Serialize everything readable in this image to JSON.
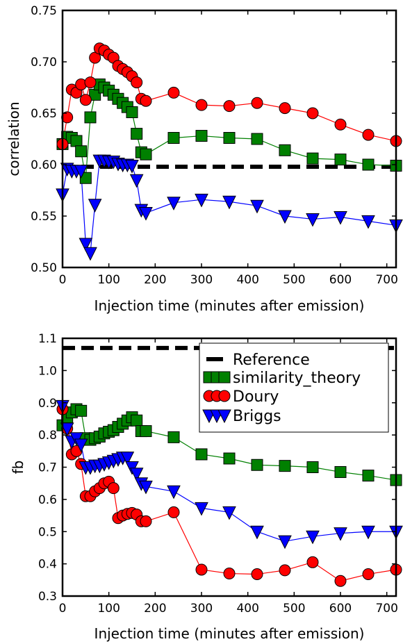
{
  "chart_data": [
    {
      "type": "line",
      "xlabel": "Injection time (minutes after emission)",
      "ylabel": "correlation",
      "xlim": [
        0,
        720
      ],
      "ylim": [
        0.5,
        0.75
      ],
      "xticks": [
        "0",
        "100",
        "200",
        "300",
        "400",
        "500",
        "600",
        "700"
      ],
      "yticks": [
        "0.50",
        "0.55",
        "0.60",
        "0.65",
        "0.70",
        "0.75"
      ],
      "reference": 0.598,
      "series": [
        {
          "name": "similarity_theory",
          "color": "#008000",
          "marker": "square",
          "x": [
            0,
            10,
            20,
            30,
            40,
            50,
            60,
            70,
            80,
            90,
            100,
            110,
            120,
            130,
            140,
            150,
            160,
            170,
            180,
            240,
            300,
            360,
            420,
            480,
            540,
            600,
            660,
            720
          ],
          "y": [
            0.62,
            0.627,
            0.626,
            0.623,
            0.613,
            0.587,
            0.646,
            0.668,
            0.678,
            0.675,
            0.672,
            0.668,
            0.664,
            0.66,
            0.656,
            0.651,
            0.63,
            0.612,
            0.61,
            0.626,
            0.628,
            0.626,
            0.625,
            0.614,
            0.606,
            0.605,
            0.6,
            0.599
          ]
        },
        {
          "name": "Doury",
          "color": "#ff0000",
          "marker": "circle",
          "x": [
            0,
            10,
            20,
            30,
            40,
            50,
            60,
            70,
            80,
            90,
            100,
            110,
            120,
            130,
            140,
            150,
            160,
            170,
            180,
            240,
            300,
            360,
            420,
            480,
            540,
            600,
            660,
            720
          ],
          "y": [
            0.62,
            0.646,
            0.673,
            0.67,
            0.678,
            0.663,
            0.68,
            0.704,
            0.713,
            0.711,
            0.707,
            0.704,
            0.696,
            0.693,
            0.69,
            0.686,
            0.68,
            0.664,
            0.662,
            0.67,
            0.658,
            0.657,
            0.66,
            0.655,
            0.65,
            0.639,
            0.629,
            0.623
          ]
        },
        {
          "name": "Briggs",
          "color": "#0000ff",
          "marker": "triangle-down",
          "x": [
            0,
            10,
            20,
            30,
            40,
            50,
            60,
            70,
            80,
            90,
            100,
            110,
            120,
            130,
            140,
            150,
            160,
            170,
            180,
            240,
            300,
            360,
            420,
            480,
            540,
            600,
            660,
            720
          ],
          "y": [
            0.571,
            0.596,
            0.594,
            0.594,
            0.594,
            0.523,
            0.514,
            0.561,
            0.604,
            0.604,
            0.603,
            0.603,
            0.601,
            0.6,
            0.6,
            0.599,
            0.585,
            0.556,
            0.553,
            0.563,
            0.566,
            0.564,
            0.56,
            0.55,
            0.547,
            0.549,
            0.545,
            0.541
          ]
        }
      ]
    },
    {
      "type": "line",
      "xlabel": "Injection time (minutes after emission)",
      "ylabel": "fb",
      "xlim": [
        0,
        720
      ],
      "ylim": [
        0.3,
        1.1
      ],
      "xticks": [
        "0",
        "100",
        "200",
        "300",
        "400",
        "500",
        "600",
        "700"
      ],
      "yticks": [
        "0.3",
        "0.4",
        "0.5",
        "0.6",
        "0.7",
        "0.8",
        "0.9",
        "1.0",
        "1.1"
      ],
      "reference": 1.07,
      "legend": {
        "placement": "top-right",
        "entries": [
          "Reference",
          "similarity_theory",
          "Doury",
          "Briggs"
        ]
      },
      "series": [
        {
          "name": "similarity_theory",
          "color": "#008000",
          "marker": "square",
          "x": [
            0,
            10,
            20,
            30,
            40,
            50,
            60,
            70,
            80,
            90,
            100,
            110,
            120,
            130,
            140,
            150,
            160,
            170,
            180,
            240,
            300,
            360,
            420,
            480,
            540,
            600,
            660,
            720
          ],
          "y": [
            0.83,
            0.855,
            0.87,
            0.88,
            0.875,
            0.79,
            0.785,
            0.79,
            0.795,
            0.805,
            0.81,
            0.815,
            0.825,
            0.835,
            0.845,
            0.855,
            0.845,
            0.812,
            0.812,
            0.793,
            0.74,
            0.727,
            0.707,
            0.704,
            0.7,
            0.685,
            0.674,
            0.66
          ]
        },
        {
          "name": "Doury",
          "color": "#ff0000",
          "marker": "circle",
          "x": [
            0,
            10,
            20,
            30,
            40,
            50,
            60,
            70,
            80,
            90,
            100,
            110,
            120,
            130,
            140,
            150,
            160,
            170,
            180,
            240,
            300,
            360,
            420,
            480,
            540,
            600,
            660,
            720
          ],
          "y": [
            0.88,
            0.82,
            0.74,
            0.75,
            0.71,
            0.61,
            0.61,
            0.625,
            0.635,
            0.65,
            0.655,
            0.635,
            0.542,
            0.55,
            0.555,
            0.558,
            0.553,
            0.532,
            0.532,
            0.56,
            0.382,
            0.37,
            0.368,
            0.38,
            0.405,
            0.347,
            0.368,
            0.382
          ]
        },
        {
          "name": "Briggs",
          "color": "#0000ff",
          "marker": "triangle-down",
          "x": [
            0,
            10,
            20,
            30,
            40,
            50,
            60,
            70,
            80,
            90,
            100,
            110,
            120,
            130,
            140,
            150,
            160,
            170,
            180,
            240,
            300,
            360,
            420,
            480,
            540,
            600,
            660,
            720
          ],
          "y": [
            0.89,
            0.82,
            0.78,
            0.79,
            0.77,
            0.7,
            0.7,
            0.705,
            0.705,
            0.71,
            0.715,
            0.72,
            0.725,
            0.73,
            0.73,
            0.7,
            0.68,
            0.65,
            0.64,
            0.625,
            0.573,
            0.56,
            0.5,
            0.47,
            0.485,
            0.495,
            0.5,
            0.5
          ]
        }
      ]
    }
  ]
}
